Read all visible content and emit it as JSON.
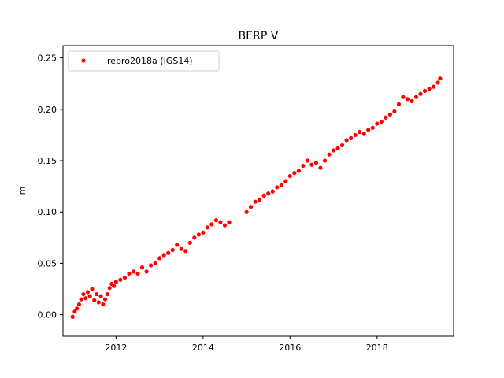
{
  "chart_data": {
    "type": "scatter",
    "title": "BERP V",
    "xlabel": "",
    "ylabel": "m",
    "xlim": [
      2010.78,
      2019.76
    ],
    "ylim": [
      -0.021,
      0.262
    ],
    "xticks": [
      2012,
      2014,
      2016,
      2018
    ],
    "yticks": [
      0.0,
      0.05,
      0.1,
      0.15,
      0.2,
      0.25
    ],
    "ytick_labels": [
      "0.00",
      "0.05",
      "0.10",
      "0.15",
      "0.20",
      "0.25"
    ],
    "grid": false,
    "legend_position": "top-left",
    "series": [
      {
        "name": "repro2018a (IGS14)",
        "color": "#ff0000",
        "marker": "circle",
        "x": [
          2011.0,
          2011.05,
          2011.1,
          2011.15,
          2011.2,
          2011.25,
          2011.3,
          2011.35,
          2011.4,
          2011.45,
          2011.5,
          2011.55,
          2011.6,
          2011.65,
          2011.7,
          2011.75,
          2011.8,
          2011.85,
          2011.9,
          2011.95,
          2012.0,
          2012.1,
          2012.2,
          2012.3,
          2012.4,
          2012.5,
          2012.6,
          2012.7,
          2012.8,
          2012.9,
          2013.0,
          2013.1,
          2013.2,
          2013.3,
          2013.4,
          2013.5,
          2013.6,
          2013.7,
          2013.8,
          2013.9,
          2014.0,
          2014.1,
          2014.2,
          2014.3,
          2014.4,
          2014.5,
          2014.6,
          2015.0,
          2015.1,
          2015.2,
          2015.3,
          2015.4,
          2015.5,
          2015.6,
          2015.7,
          2015.8,
          2015.9,
          2016.0,
          2016.1,
          2016.2,
          2016.3,
          2016.4,
          2016.5,
          2016.6,
          2016.7,
          2016.8,
          2016.9,
          2017.0,
          2017.1,
          2017.2,
          2017.3,
          2017.4,
          2017.5,
          2017.6,
          2017.7,
          2017.8,
          2017.9,
          2018.0,
          2018.1,
          2018.2,
          2018.3,
          2018.4,
          2018.5,
          2018.6,
          2018.7,
          2018.8,
          2018.9,
          2019.0,
          2019.1,
          2019.2,
          2019.3,
          2019.4,
          2019.45
        ],
        "y": [
          -0.002,
          0.003,
          0.006,
          0.01,
          0.015,
          0.02,
          0.016,
          0.022,
          0.018,
          0.025,
          0.014,
          0.02,
          0.012,
          0.018,
          0.01,
          0.015,
          0.02,
          0.026,
          0.03,
          0.028,
          0.032,
          0.034,
          0.036,
          0.04,
          0.042,
          0.04,
          0.046,
          0.042,
          0.048,
          0.05,
          0.055,
          0.058,
          0.06,
          0.063,
          0.068,
          0.064,
          0.062,
          0.07,
          0.075,
          0.078,
          0.08,
          0.085,
          0.088,
          0.092,
          0.09,
          0.087,
          0.09,
          0.1,
          0.105,
          0.11,
          0.112,
          0.116,
          0.118,
          0.12,
          0.124,
          0.126,
          0.13,
          0.135,
          0.138,
          0.14,
          0.145,
          0.15,
          0.146,
          0.148,
          0.143,
          0.15,
          0.156,
          0.16,
          0.162,
          0.165,
          0.17,
          0.172,
          0.175,
          0.178,
          0.176,
          0.18,
          0.182,
          0.186,
          0.188,
          0.192,
          0.195,
          0.198,
          0.205,
          0.212,
          0.21,
          0.208,
          0.212,
          0.215,
          0.218,
          0.22,
          0.222,
          0.226,
          0.23
        ]
      }
    ]
  }
}
